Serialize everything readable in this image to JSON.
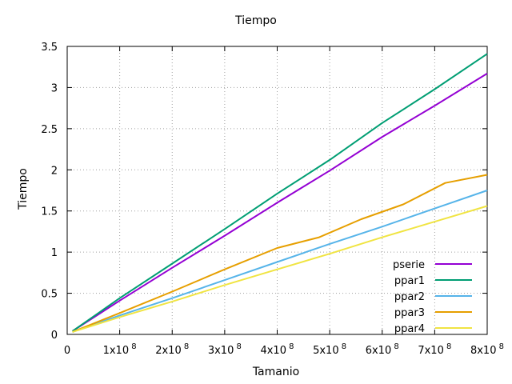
{
  "chart_data": {
    "type": "line",
    "title": "Tiempo",
    "xlabel": "Tamanio",
    "ylabel": "Tiempo",
    "xlim": [
      0,
      800000000
    ],
    "ylim": [
      0,
      3.5
    ],
    "grid": true,
    "legend_position": "bottom-right",
    "x_ticks": [
      {
        "value": 0,
        "label": "0"
      },
      {
        "value": 100000000,
        "label": "1x10",
        "exp": "8"
      },
      {
        "value": 200000000,
        "label": "2x10",
        "exp": "8"
      },
      {
        "value": 300000000,
        "label": "3x10",
        "exp": "8"
      },
      {
        "value": 400000000,
        "label": "4x10",
        "exp": "8"
      },
      {
        "value": 500000000,
        "label": "5x10",
        "exp": "8"
      },
      {
        "value": 600000000,
        "label": "6x10",
        "exp": "8"
      },
      {
        "value": 700000000,
        "label": "7x10",
        "exp": "8"
      },
      {
        "value": 800000000,
        "label": "8x10",
        "exp": "8"
      }
    ],
    "y_ticks": [
      {
        "value": 0,
        "label": "0"
      },
      {
        "value": 0.5,
        "label": "0.5"
      },
      {
        "value": 1,
        "label": "1"
      },
      {
        "value": 1.5,
        "label": "1.5"
      },
      {
        "value": 2,
        "label": "2"
      },
      {
        "value": 2.5,
        "label": "2.5"
      },
      {
        "value": 3,
        "label": "3"
      },
      {
        "value": 3.5,
        "label": "3.5"
      }
    ],
    "series": [
      {
        "name": "pserie",
        "color": "#9400d3",
        "x": [
          10000000,
          100000000,
          200000000,
          300000000,
          400000000,
          500000000,
          600000000,
          700000000,
          800000000
        ],
        "y": [
          0.04,
          0.41,
          0.81,
          1.2,
          1.6,
          1.99,
          2.4,
          2.78,
          3.17
        ]
      },
      {
        "name": "ppar1",
        "color": "#009e73",
        "x": [
          10000000,
          100000000,
          200000000,
          300000000,
          400000000,
          500000000,
          600000000,
          700000000,
          800000000
        ],
        "y": [
          0.04,
          0.44,
          0.86,
          1.28,
          1.71,
          2.12,
          2.57,
          2.98,
          3.41
        ]
      },
      {
        "name": "ppar2",
        "color": "#56b4e9",
        "x": [
          10000000,
          100000000,
          200000000,
          300000000,
          400000000,
          500000000,
          600000000,
          700000000,
          800000000
        ],
        "y": [
          0.03,
          0.23,
          0.44,
          0.66,
          0.88,
          1.1,
          1.31,
          1.53,
          1.75
        ]
      },
      {
        "name": "ppar3",
        "color": "#e69f00",
        "x": [
          10000000,
          100000000,
          200000000,
          300000000,
          400000000,
          480000000,
          560000000,
          640000000,
          720000000,
          800000000
        ],
        "y": [
          0.03,
          0.26,
          0.52,
          0.79,
          1.05,
          1.18,
          1.4,
          1.58,
          1.84,
          1.94
        ]
      },
      {
        "name": "ppar4",
        "color": "#f0e442",
        "x": [
          10000000,
          100000000,
          200000000,
          300000000,
          400000000,
          500000000,
          600000000,
          700000000,
          800000000
        ],
        "y": [
          0.03,
          0.21,
          0.4,
          0.6,
          0.79,
          0.98,
          1.18,
          1.37,
          1.56
        ]
      }
    ]
  }
}
